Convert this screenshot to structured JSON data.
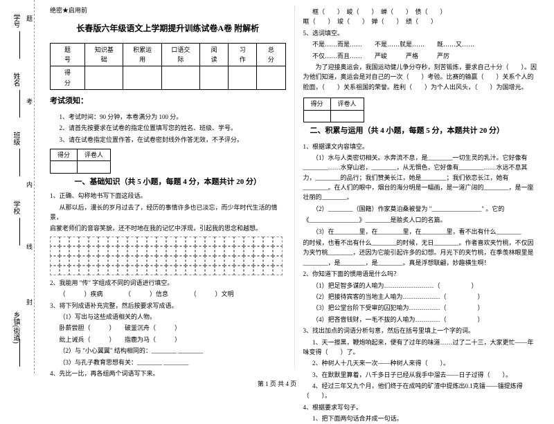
{
  "margin": {
    "labels": [
      "学号",
      "姓名",
      "班级",
      "学校",
      "乡镇(街道)"
    ],
    "midchars": [
      "题",
      "考",
      "内",
      "线",
      "封"
    ]
  },
  "secret": "绝密★启用前",
  "title": "长春版六年级语文上学期提升训练试卷A卷 附解析",
  "scoreTable": {
    "headers": [
      "题　号",
      "知识基础",
      "积累运用",
      "口语交际",
      "阅读",
      "习作",
      "总分"
    ],
    "scoreLabel": "得　分"
  },
  "notice": {
    "heading": "考试须知：",
    "items": [
      "1、考试时间：90 分钟，本卷满分为 100 分。",
      "2、请首先按要求在试卷的指定位置填写您的姓名、班级、学号。",
      "3、请在试卷指定位置作答，在试卷密封线外作答无效，不予评分。"
    ]
  },
  "scorerLabel": "得分",
  "graderLabel": "评卷人",
  "section1": {
    "title": "一、基础知识（共 5 小题，每题 4 分，本题共计 20 分）",
    "q1": "1、正确、勾称地书写下面这段话。",
    "q1text1": "从那以后，漫长的岁月过去了，经历的事情许多也已淡忘，而少年时代生活的情景，",
    "q1text2": "启蒙老师们的音容笑貌，还不时地在我的记忆中浮现，引起我的思念和越想。",
    "q2": "2、我能用 \"传\" 字组成不同的词语进行填空。",
    "q2a": "（　　　）疾病　　　　（　　　）信息　　　　（　　　）文明",
    "q3": "3、将下列成语补充完整，然后按要求写成语。",
    "q3a": "（1）写出与这些成语相关的人物。",
    "q3b": "卧薪尝胆（　　　）　　破釜沉舟（　　　）",
    "q3c": "纰上诫兵（　　　）　　指鹿为马（　　　）",
    "q3d": "（2）与 \"小心翼翼\" 结构相同的：________ ________",
    "q3e": "（3）与孔子教育思想有关：________ ________",
    "q4": "4、先比一比，再各组两个词语写下来。"
  },
  "col2": {
    "pairs": "框（　　）　峻（　　）　蝉（　　）　债（　　）\n眶（　　）　竣（　　）　婵（　　）　绩（　　）",
    "q5": "5、选词填空。",
    "q5a": "不是……而是……　　不是……就是……　　既……又……",
    "q5b": "不仅……而且……　　严峻　　　严格　　　严厉",
    "q5c": "　　为了迎接奥运会，我国运动健儿争分夺秒，刻苦锻炼，要求自己十分（　　）。因为他们知道，奥运会是对自己的一次（　　）考验。比赛的输赢（　　）关系个人的脸面，（　　）关系祖国的荣誉。胜利（　　）为个人出风头，（　　）为国增光。",
    "section2title": "二、积累与运用（共 4 小题，每题 5 分，本题共计 20 分）",
    "q1": "1、根据课文内容填空。",
    "q1a": "（1）水与人类密切相关。水奔流不息，是________一切生灵的乳汁。它好像有________……水穿山岩，________，从无惧色，它好像有________……水远不息其力，________的品行；我们赞美长江，她是________；我们依恋长江，她有________。在人们的眼中，烟台的海分明是一幅画，是一道广阔的________，是一座壮丽的________。",
    "q1b": "（2）________（国籍）作家莫泊桑被誉为 \"________________\" 。它的",
    "q1c": "《________________》________是脍炙人口的名篇。",
    "q1d": "（3）在________里，在________里，在________里，看不出有什么________",
    "q1e": "的时候，也看不出有什么________的时候，无日________。作者喜欢夹竹桃，不仅因为夹竹桃________，还因为它能引起许多的幻想。月光下的夹竹桃，在季羡林眼里是________，是________，是________。真是浮想联翩，妙趣横生啊！",
    "q2": "2、你知道下面的惯用语是什么吗？",
    "q2a": "（1）把足智多谋的人喻为……………………（　　　　　）",
    "q2b": "（2）把接待宾客的当地主人喻为………………（　　　　　）",
    "q2c": "（3）把公堂台阶下受审的囚犯喻为……………（　　　　　）",
    "q2d": "（4）把吝啬钱财，一毛不拔的人喻为…………（　　　　　）",
    "q3": "3、找出加点的词语分析句意，然后在括号里填上一个字的词。",
    "q3a": "1、天一擦黑，鞭炮响起来，便有了过年的味道……过了二十三，大家更忙——年味变得（　　）了。",
    "q3b": "2、种树人十几天来一次——种树人来得（　　）。",
    "q3c": "3、在默默里算着，八千多日子已经从我手中溜去——日子过得（　　）。",
    "q3d": "4、经过三年又九个月，他们终于在成吨的矿渣中提炼出0.1克镭——镭提炼得（　　）。",
    "q4": "4、根据要求写句子。",
    "q4a": "1、把下面两句话合并成一句话。"
  },
  "footer": "第 1 页  共 4 页"
}
